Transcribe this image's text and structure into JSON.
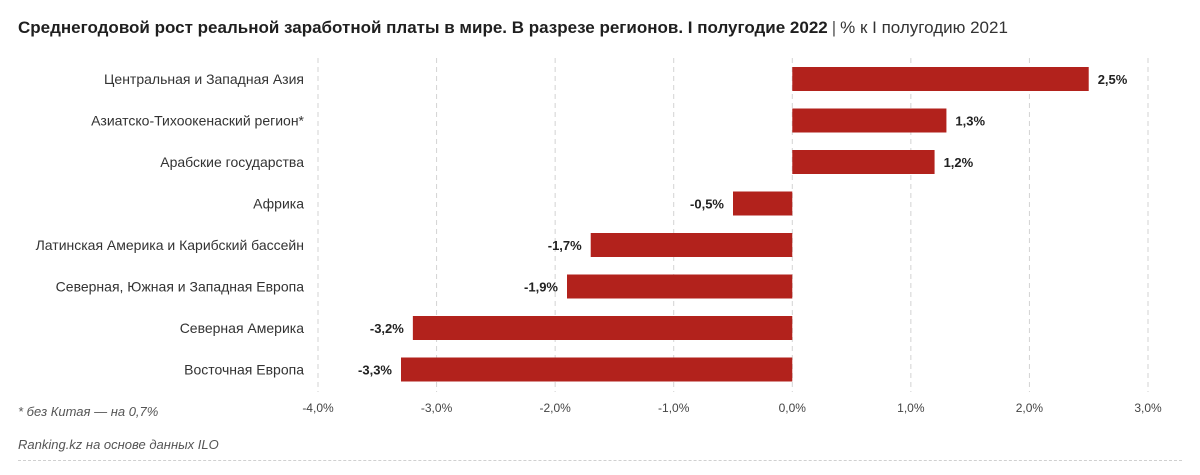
{
  "title": {
    "main": "Среднегодовой рост реальной заработной платы в мире. В разрезе регионов. I полугодие 2022",
    "separator": "|",
    "sub": "% к I полугодию 2021"
  },
  "footnote": "* без Китая — на 0,7%",
  "source": "Ranking.kz на основе данных ILO",
  "colors": {
    "bar": "#b2221c",
    "grid": "#d3d3d3"
  },
  "chart_data": {
    "type": "bar",
    "orientation": "horizontal",
    "categories": [
      "Центральная и Западная Азия",
      "Азиатско-Тихоокенаский регион*",
      "Арабские государства",
      "Африка",
      "Латинская Америка и Карибский бассейн",
      "Северная, Южная и Западная Европа",
      "Северная Америка",
      "Восточная Европа"
    ],
    "values": [
      2.5,
      1.3,
      1.2,
      -0.5,
      -1.7,
      -1.9,
      -3.2,
      -3.3
    ],
    "value_labels": [
      "2,5%",
      "1,3%",
      "1,2%",
      "-0,5%",
      "-1,7%",
      "-1,9%",
      "-3,2%",
      "-3,3%"
    ],
    "xlim": [
      -4.0,
      3.0
    ],
    "ticks": [
      -4.0,
      -3.0,
      -2.0,
      -1.0,
      0.0,
      1.0,
      2.0,
      3.0
    ],
    "tick_labels": [
      "-4,0%",
      "-3,0%",
      "-2,0%",
      "-1,0%",
      "0,0%",
      "1,0%",
      "2,0%",
      "3,0%"
    ],
    "grid": true,
    "legend": false
  }
}
